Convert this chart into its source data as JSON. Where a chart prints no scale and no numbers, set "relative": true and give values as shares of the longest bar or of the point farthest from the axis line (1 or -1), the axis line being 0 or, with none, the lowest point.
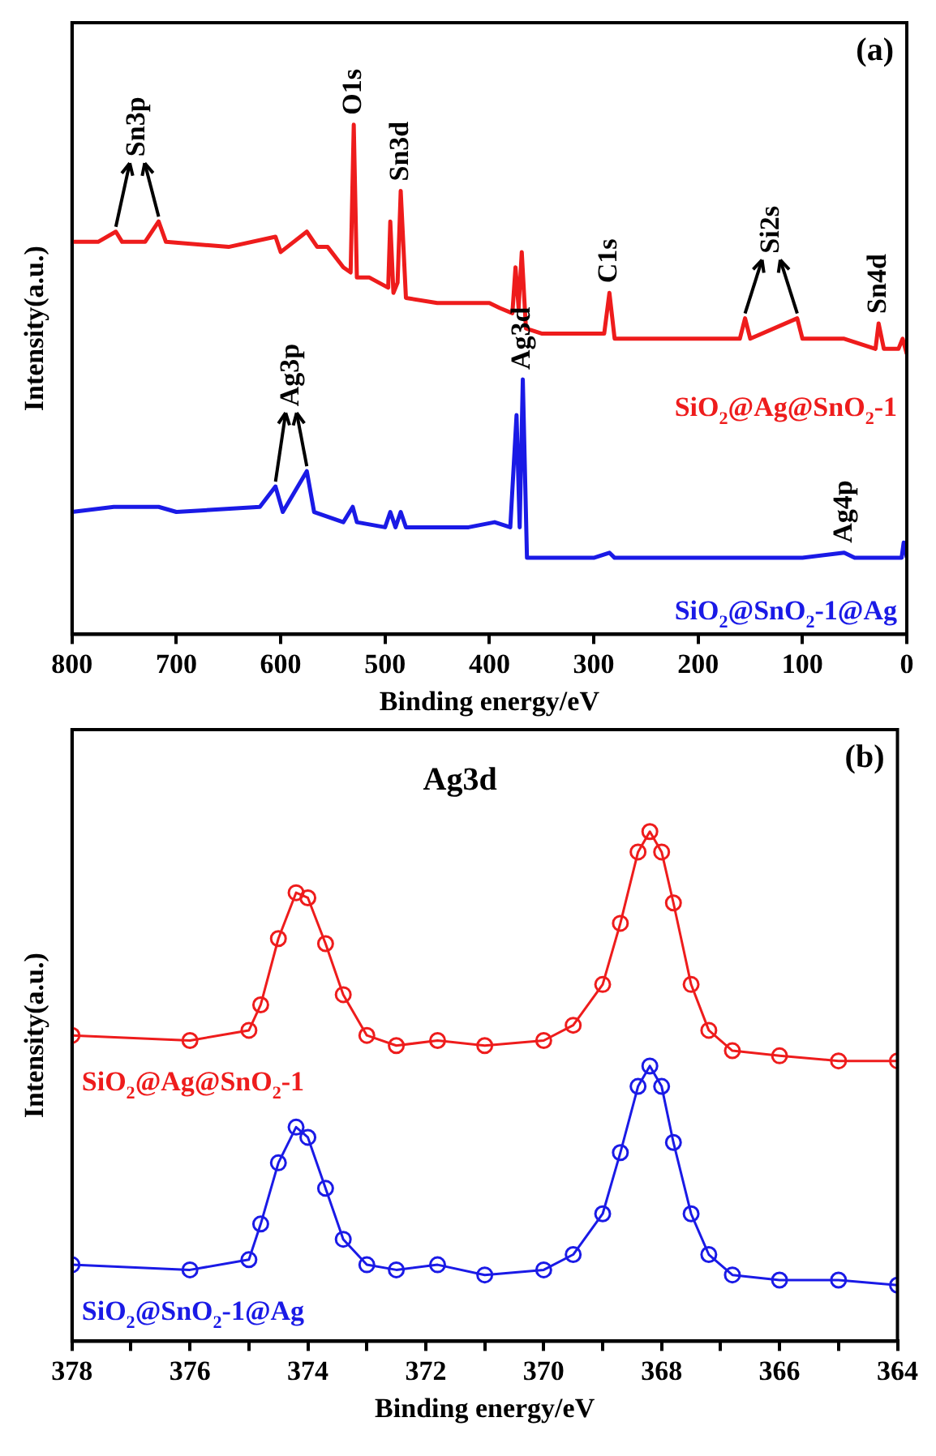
{
  "chart_data": [
    {
      "type": "line",
      "relative": true,
      "xlabel": "Binding energy/eV",
      "ylabel": "Intensity(a.u.)",
      "xlim": [
        800,
        0
      ],
      "xticks": [
        800,
        700,
        600,
        500,
        400,
        300,
        200,
        100,
        0
      ],
      "marker": "none",
      "annotations": [
        "(a)",
        {
          "text": "Sn3p",
          "x": 717,
          "y": 0.81
        },
        {
          "text": "O1s",
          "x": 530,
          "y": 1
        },
        {
          "text": "Sn3d",
          "x": 485,
          "y": 0.87
        },
        {
          "text": "C1s",
          "x": 285,
          "y": 0.67
        },
        {
          "text": "Si2s",
          "x": 155,
          "y": 0.62
        },
        {
          "text": "Sn4d",
          "x": 27,
          "y": 0.61
        },
        {
          "text": "Ag3p",
          "x": 575,
          "y": 0.32
        },
        {
          "text": "Ag3d",
          "x": 368,
          "y": 0.5
        },
        {
          "text": "Ag4p",
          "x": 60,
          "y": 0.16
        }
      ],
      "series": [
        {
          "name": "SiO$_{2}$@Ag@SnO$_{2}$-1",
          "color": "#ee1c1c",
          "x": [
            800,
            775,
            758,
            752,
            730,
            717,
            710,
            650,
            605,
            600,
            575,
            565,
            555,
            540,
            533,
            530,
            527,
            515,
            497,
            495,
            492,
            488,
            485,
            480,
            450,
            400,
            390,
            378,
            375,
            372,
            369,
            365,
            350,
            300,
            290,
            285,
            280,
            250,
            200,
            160,
            155,
            150,
            105,
            100,
            60,
            30,
            27,
            22,
            8,
            4,
            0
          ],
          "values": [
            0.77,
            0.77,
            0.79,
            0.77,
            0.77,
            0.81,
            0.77,
            0.76,
            0.78,
            0.75,
            0.79,
            0.76,
            0.76,
            0.72,
            0.71,
            1,
            0.7,
            0.7,
            0.68,
            0.81,
            0.67,
            0.69,
            0.87,
            0.66,
            0.65,
            0.65,
            0.64,
            0.63,
            0.72,
            0.64,
            0.75,
            0.6,
            0.59,
            0.59,
            0.59,
            0.67,
            0.58,
            0.58,
            0.58,
            0.58,
            0.62,
            0.58,
            0.62,
            0.58,
            0.58,
            0.56,
            0.61,
            0.56,
            0.56,
            0.58,
            0.55
          ]
        },
        {
          "name": "SiO$_{2}$@SnO$_{2}$-1@Ag",
          "color": "#1a1ae6",
          "x": [
            800,
            760,
            717,
            700,
            620,
            605,
            598,
            575,
            568,
            540,
            531,
            527,
            500,
            495,
            490,
            485,
            480,
            420,
            395,
            380,
            374,
            371,
            368,
            364,
            300,
            285,
            280,
            200,
            100,
            60,
            50,
            30,
            25,
            20,
            5,
            3,
            0
          ],
          "values": [
            0.24,
            0.25,
            0.25,
            0.24,
            0.25,
            0.29,
            0.24,
            0.32,
            0.24,
            0.22,
            0.25,
            0.22,
            0.21,
            0.24,
            0.21,
            0.24,
            0.21,
            0.21,
            0.22,
            0.21,
            0.43,
            0.21,
            0.5,
            0.15,
            0.15,
            0.16,
            0.15,
            0.15,
            0.15,
            0.16,
            0.15,
            0.15,
            0.15,
            0.15,
            0.15,
            0.18,
            0.15
          ]
        }
      ]
    },
    {
      "type": "line",
      "relative": true,
      "xlabel": "Binding energy/eV",
      "ylabel": "Intensity(a.u.)",
      "xlim": [
        378,
        364
      ],
      "xticks": [
        378,
        {
          "value": 377,
          "label": null
        },
        376,
        {
          "value": 375,
          "label": null
        },
        374,
        {
          "value": 373,
          "label": null
        },
        372,
        {
          "value": 371,
          "label": null
        },
        370,
        {
          "value": 369,
          "label": null
        },
        368,
        {
          "value": 367,
          "label": null
        },
        366,
        {
          "value": 365,
          "label": null
        },
        364
      ],
      "marker": "circle",
      "annotations": [
        "(b)",
        "Ag3d"
      ],
      "series": [
        {
          "name": "SiO$_{2}$@Ag@SnO$_{2}$-1",
          "color": "#ee1c1c",
          "x": [
            378,
            376,
            375,
            374.8,
            374.5,
            374.2,
            374,
            373.7,
            373.4,
            373,
            372.5,
            371.8,
            371,
            370,
            369.5,
            369,
            368.7,
            368.4,
            368.2,
            368,
            367.8,
            367.5,
            367.2,
            366.8,
            366,
            365,
            364
          ],
          "values": [
            0.6,
            0.59,
            0.61,
            0.66,
            0.79,
            0.88,
            0.87,
            0.78,
            0.68,
            0.6,
            0.58,
            0.59,
            0.58,
            0.59,
            0.62,
            0.7,
            0.82,
            0.96,
            1,
            0.96,
            0.86,
            0.7,
            0.61,
            0.57,
            0.56,
            0.55,
            0.55
          ]
        },
        {
          "name": "SiO$_{2}$@SnO$_{2}$-1@Ag",
          "color": "#1a1ae6",
          "x": [
            378,
            376,
            375,
            374.8,
            374.5,
            374.2,
            374,
            373.7,
            373.4,
            373,
            372.5,
            371.8,
            371,
            370,
            369.5,
            369,
            368.7,
            368.4,
            368.2,
            368,
            367.8,
            367.5,
            367.2,
            366.8,
            366,
            365,
            364
          ],
          "values": [
            0.15,
            0.14,
            0.16,
            0.23,
            0.35,
            0.42,
            0.4,
            0.3,
            0.2,
            0.15,
            0.14,
            0.15,
            0.13,
            0.14,
            0.17,
            0.25,
            0.37,
            0.5,
            0.54,
            0.5,
            0.39,
            0.25,
            0.17,
            0.13,
            0.12,
            0.12,
            0.11
          ]
        }
      ]
    }
  ]
}
